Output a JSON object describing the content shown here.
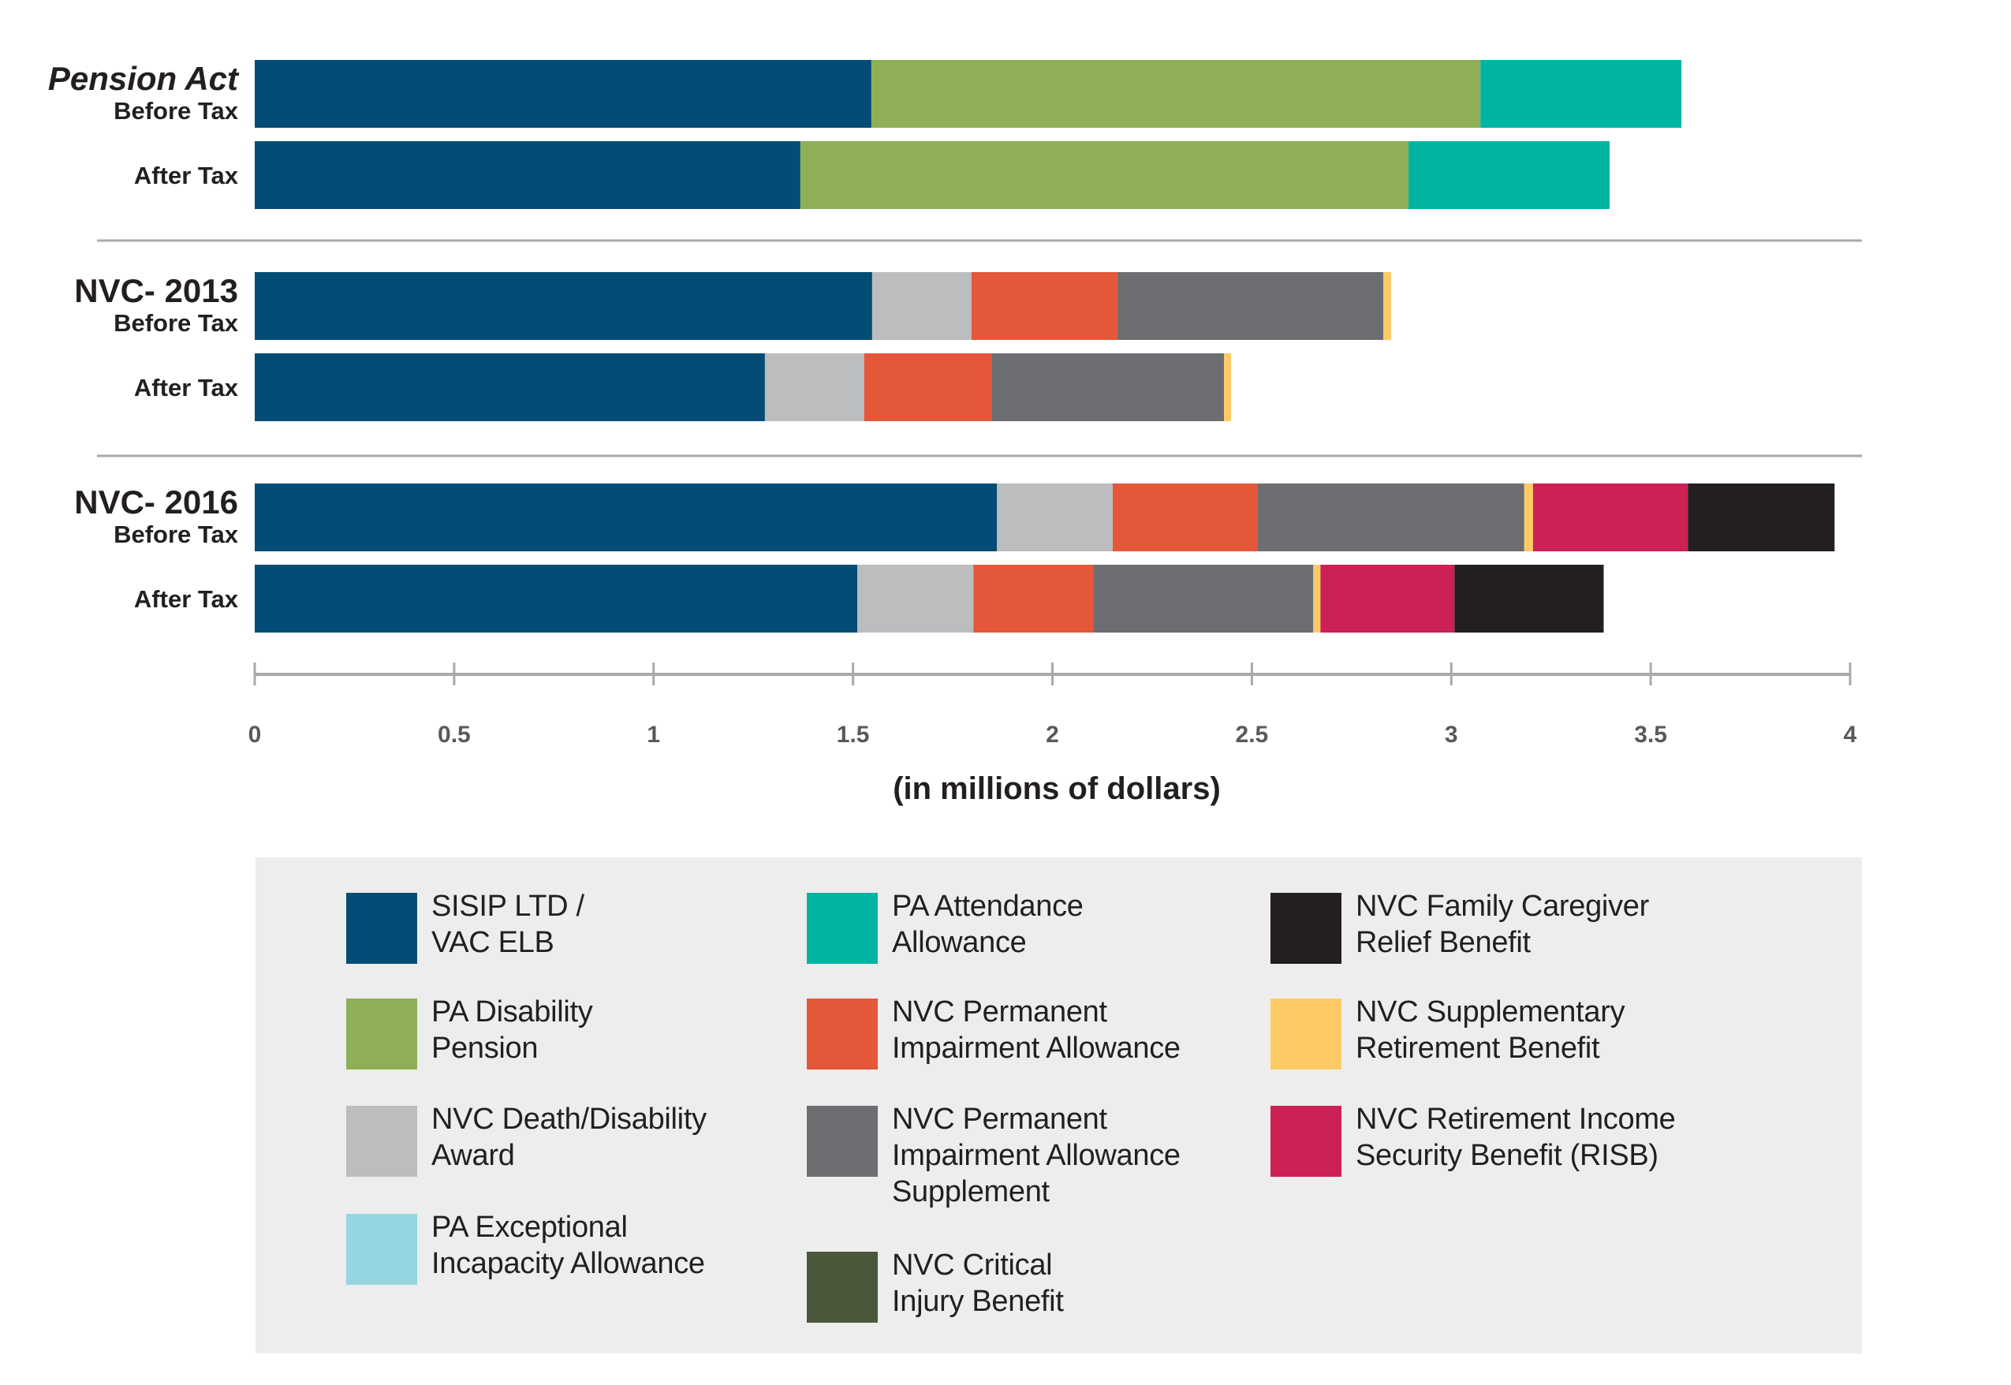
{
  "chart_data": {
    "type": "bar",
    "orientation": "horizontal",
    "stacked": true,
    "title": "",
    "xlabel": "(in millions of dollars)",
    "ylabel": "",
    "xlim": [
      0,
      4
    ],
    "xticks": [
      "0",
      "0.5",
      "1",
      "1.5",
      "2",
      "2.5",
      "3",
      "3.5",
      "4"
    ],
    "xtick_values": [
      0,
      0.5,
      1,
      1.5,
      2,
      2.5,
      3,
      3.5,
      4
    ],
    "grid": false,
    "legend_position": "bottom",
    "groups": [
      {
        "name": "Pension Act",
        "italic": true,
        "rows": [
          {
            "label": "Before Tax",
            "segments": [
              {
                "series": "sisip",
                "value": 1.546
              },
              {
                "series": "pa_disability",
                "value": 1.527
              },
              {
                "series": "pa_attendance",
                "value": 0.504
              }
            ]
          },
          {
            "label": "After Tax",
            "segments": [
              {
                "series": "sisip",
                "value": 1.368
              },
              {
                "series": "pa_disability",
                "value": 1.525
              },
              {
                "series": "pa_attendance",
                "value": 0.504
              }
            ]
          }
        ]
      },
      {
        "name": "NVC- 2013",
        "italic": false,
        "rows": [
          {
            "label": "Before Tax",
            "segments": [
              {
                "series": "sisip",
                "value": 1.548
              },
              {
                "series": "nvc_death",
                "value": 0.249
              },
              {
                "series": "nvc_pia",
                "value": 0.366
              },
              {
                "series": "nvc_pias",
                "value": 0.667
              },
              {
                "series": "nvc_srb",
                "value": 0.019
              }
            ]
          },
          {
            "label": "After Tax",
            "segments": [
              {
                "series": "sisip",
                "value": 1.279
              },
              {
                "series": "nvc_death",
                "value": 0.249
              },
              {
                "series": "nvc_pia",
                "value": 0.319
              },
              {
                "series": "nvc_pias",
                "value": 0.583
              },
              {
                "series": "nvc_srb",
                "value": 0.018
              }
            ]
          }
        ]
      },
      {
        "name": "NVC- 2016",
        "italic": false,
        "rows": [
          {
            "label": "Before Tax",
            "segments": [
              {
                "series": "sisip",
                "value": 1.861
              },
              {
                "series": "nvc_death",
                "value": 0.29
              },
              {
                "series": "nvc_pia",
                "value": 0.364
              },
              {
                "series": "nvc_pias",
                "value": 0.668
              },
              {
                "series": "nvc_srb",
                "value": 0.022
              },
              {
                "series": "nvc_risb",
                "value": 0.388
              },
              {
                "series": "nvc_fcrb",
                "value": 0.368
              }
            ]
          },
          {
            "label": "After Tax",
            "segments": [
              {
                "series": "sisip",
                "value": 1.511
              },
              {
                "series": "nvc_death",
                "value": 0.291
              },
              {
                "series": "nvc_pia",
                "value": 0.3
              },
              {
                "series": "nvc_pias",
                "value": 0.552
              },
              {
                "series": "nvc_srb",
                "value": 0.018
              },
              {
                "series": "nvc_risb",
                "value": 0.336
              },
              {
                "series": "nvc_fcrb",
                "value": 0.374
              }
            ]
          }
        ]
      }
    ],
    "series": [
      {
        "id": "sisip",
        "name": "SISIP LTD /\nVAC ELB",
        "color": "#024c75"
      },
      {
        "id": "pa_disability",
        "name": "PA Disability\nPension",
        "color": "#8eaf55"
      },
      {
        "id": "nvc_death",
        "name": "NVC Death/Disability\nAward",
        "color": "#bcbdbf"
      },
      {
        "id": "pa_eia",
        "name": "PA Exceptional\nIncapacity Allowance",
        "color": "#95d6e0"
      },
      {
        "id": "pa_attendance",
        "name": "PA Attendance\nAllowance",
        "color": "#00b4a3"
      },
      {
        "id": "nvc_pia",
        "name": "NVC Permanent\nImpairment Allowance",
        "color": "#e45739"
      },
      {
        "id": "nvc_pias",
        "name": "NVC Permanent\nImpairment Allowance\nSupplement",
        "color": "#6d6e72"
      },
      {
        "id": "nvc_cib",
        "name": "NVC Critical\nInjury Benefit",
        "color": "#4b583b"
      },
      {
        "id": "nvc_fcrb",
        "name": "NVC Family Caregiver\nRelief Benefit",
        "color": "#231f20"
      },
      {
        "id": "nvc_srb",
        "name": "NVC Supplementary\nRetirement Benefit",
        "color": "#fdcb66"
      },
      {
        "id": "nvc_risb",
        "name": "NVC Retirement Income\nSecurity Benefit (RISB)",
        "color": "#cb2154"
      }
    ],
    "legend_columns": [
      [
        "sisip",
        "pa_disability",
        "nvc_death",
        "pa_eia"
      ],
      [
        "pa_attendance",
        "nvc_pia",
        "nvc_pias",
        "nvc_cib"
      ],
      [
        "nvc_fcrb",
        "nvc_srb",
        "nvc_risb"
      ]
    ]
  }
}
